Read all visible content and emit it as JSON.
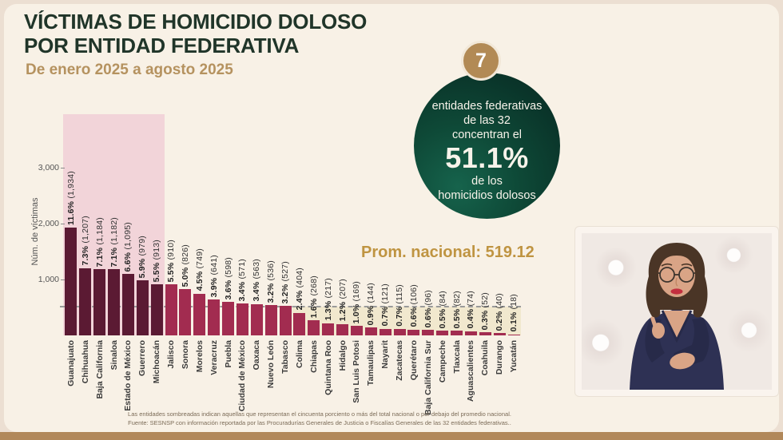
{
  "header": {
    "title_line1": "VÍCTIMAS DE HOMICIDIO DOLOSO",
    "title_line2": "POR ENTIDAD FEDERATIVA",
    "subtitle": "De enero 2025 a agosto 2025"
  },
  "highlight_circle": {
    "badge_number": "7",
    "l1": "entidades federativas",
    "l2": "de las 32",
    "l3": "concentran el",
    "big_pct": "51.1%",
    "l4": "de los",
    "l5": "homicidios dolosos"
  },
  "annotation": {
    "prom_nacional": "Prom. nacional: 519.12"
  },
  "footnote": {
    "line1": "Las entidades sombreadas indican aquellas que representan el cincuenta porciento o más del total nacional o por debajo del promedio nacional.",
    "line2": "Fuente: SESNSP con información reportada por las Procuradurías Generales de Justicia o Fiscalías Generales de las 32 entidades federativas.."
  },
  "colors": {
    "bar_dark": "#5b1a33",
    "bar_light": "#a22c50",
    "top_shade_pink": "#f2d4d9",
    "below_avg_shade_cream": "#efe6c8",
    "avg_line_gray": "#9a9a9a",
    "title_green": "#203529",
    "subtitle_gold": "#b5925f",
    "prom_gold": "#bf9441",
    "circle_green": "#0e4937",
    "badge_gold": "#b28a55",
    "background_cream": "#f8f1e6",
    "bottom_strip_tan": "#b1885a"
  },
  "chart_data": {
    "type": "bar",
    "title": "Víctimas de homicidio doloso por entidad federativa (enero 2025 a agosto 2025)",
    "xlabel": "",
    "ylabel": "Núm. de víctimas",
    "yticks": [
      1000,
      2000,
      3000
    ],
    "ytick_labels": [
      "1,000",
      "2,000",
      "3,000"
    ],
    "ylim": [
      0,
      3950
    ],
    "grid": false,
    "legend": "none",
    "national_average": 519.12,
    "shaded_top_group_count": 7,
    "below_average_start_index": 16,
    "categories": [
      "Guanajuato",
      "Chihuahua",
      "Baja California",
      "Sinaloa",
      "Estado de México",
      "Guerrero",
      "Michoacán",
      "Jalisco",
      "Sonora",
      "Morelos",
      "Veracruz",
      "Puebla",
      "Ciudad de México",
      "Oaxaca",
      "Nuevo León",
      "Tabasco",
      "Colima",
      "Chiapas",
      "Quintana Roo",
      "Hidalgo",
      "San Luis Potosi",
      "Tamaulipas",
      "Nayarit",
      "Zacatecas",
      "Querétaro",
      "Baja California Sur",
      "Campeche",
      "Tlaxcala",
      "Aguascalientes",
      "Coahuila",
      "Durango",
      "Yucatán"
    ],
    "values": [
      1934,
      1207,
      1184,
      1182,
      1095,
      979,
      913,
      910,
      826,
      749,
      641,
      598,
      571,
      563,
      536,
      527,
      404,
      268,
      217,
      207,
      169,
      144,
      121,
      115,
      106,
      96,
      84,
      82,
      74,
      52,
      40,
      18
    ],
    "pct_labels": [
      "11.6%",
      "7.3%",
      "7.1%",
      "7.1%",
      "6.6%",
      "5.9%",
      "5.5%",
      "5.5%",
      "5.0%",
      "4.5%",
      "3.9%",
      "3.6%",
      "3.4%",
      "3.4%",
      "3.2%",
      "3.2%",
      "2.4%",
      "1.6%",
      "1.3%",
      "1.2%",
      "1.0%",
      "0.9%",
      "0.7%",
      "0.7%",
      "0.6%",
      "0.6%",
      "0.5%",
      "0.5%",
      "0.4%",
      "0.3%",
      "0.2%",
      "0.1%"
    ],
    "count_labels": [
      "1,934",
      "1,207",
      "1,184",
      "1,182",
      "1,095",
      "979",
      "913",
      "910",
      "826",
      "749",
      "641",
      "598",
      "571",
      "563",
      "536",
      "527",
      "404",
      "268",
      "217",
      "207",
      "169",
      "144",
      "121",
      "115",
      "106",
      "96",
      "84",
      "82",
      "74",
      "52",
      "40",
      "18"
    ]
  }
}
